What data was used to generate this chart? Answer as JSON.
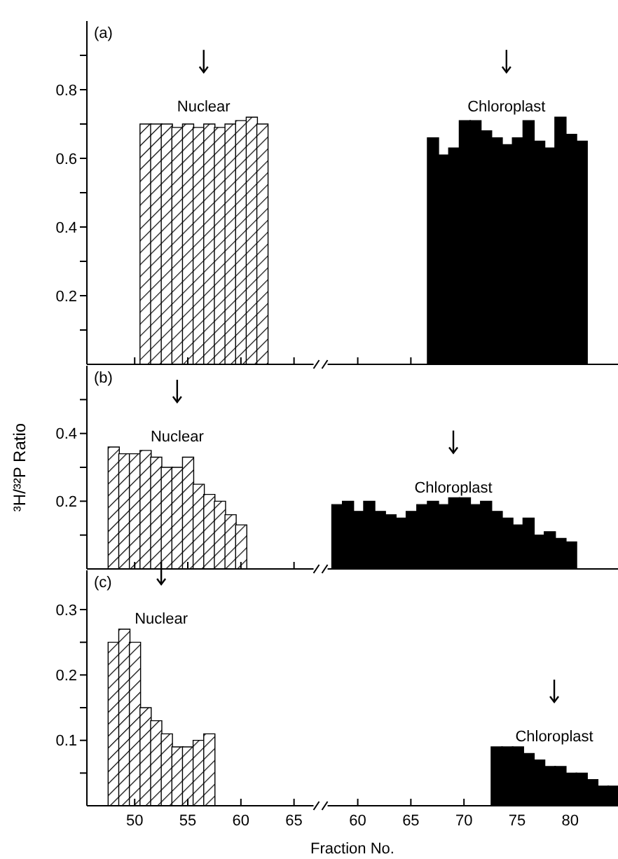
{
  "chart_data": [
    {
      "type": "bar",
      "annotations": [
        "(a)"
      ],
      "tick_labels": "y",
      "categories": [
        null,
        null,
        null,
        null,
        "50",
        null,
        null,
        null,
        null,
        "55",
        null,
        null,
        null,
        null,
        "60",
        null,
        null,
        null,
        null,
        "65",
        null,
        null,
        null,
        null,
        null,
        "60",
        null,
        null,
        null,
        null,
        "65",
        null,
        null,
        null,
        null,
        "70",
        null,
        null,
        null,
        null,
        "75",
        null,
        null,
        null,
        null,
        "80",
        null,
        null,
        null,
        null
      ],
      "series": [
        {
          "name": "Nuclear",
          "color": "#000000",
          "values": [
            null,
            null,
            null,
            null,
            null,
            0.7,
            0.7,
            0.7,
            0.69,
            0.7,
            0.69,
            0.7,
            0.69,
            0.7,
            0.71,
            0.72,
            0.7,
            null,
            null,
            null,
            null,
            null,
            null,
            null,
            null,
            null,
            null,
            null,
            null,
            null,
            null,
            null,
            null,
            null,
            null,
            null,
            null,
            null,
            null,
            null,
            null,
            null,
            null,
            null,
            null,
            null,
            null,
            null,
            null,
            null
          ]
        },
        {
          "name": "Chloroplast",
          "color": "#000000",
          "values": [
            null,
            null,
            null,
            null,
            null,
            null,
            null,
            null,
            null,
            null,
            null,
            null,
            null,
            null,
            null,
            null,
            null,
            null,
            null,
            null,
            null,
            null,
            null,
            null,
            null,
            null,
            null,
            null,
            null,
            null,
            null,
            null,
            0.66,
            0.61,
            0.63,
            0.71,
            0.71,
            0.68,
            0.66,
            0.64,
            0.66,
            0.71,
            0.65,
            0.63,
            0.72,
            0.67,
            0.65,
            null,
            null,
            null
          ]
        }
      ],
      "ylim": [
        0,
        1.0
      ],
      "yticks": [
        {
          "value": 0.1,
          "label": null
        },
        0.2,
        {
          "value": 0.3,
          "label": null
        },
        0.4,
        {
          "value": 0.5,
          "label": null
        },
        0.6,
        {
          "value": 0.7,
          "label": null
        },
        0.8,
        {
          "value": 0.9,
          "label": null
        }
      ]
    },
    {
      "type": "bar",
      "annotations": [
        "(b)"
      ],
      "tick_labels": "y",
      "ylabel": "³H/³²P Ratio",
      "categories": [
        null,
        null,
        null,
        null,
        "50",
        null,
        null,
        null,
        null,
        "55",
        null,
        null,
        null,
        null,
        "60",
        null,
        null,
        null,
        null,
        "65",
        null,
        null,
        null,
        null,
        null,
        "60",
        null,
        null,
        null,
        null,
        "65",
        null,
        null,
        null,
        null,
        "70",
        null,
        null,
        null,
        null,
        "75",
        null,
        null,
        null,
        null,
        "80",
        null,
        null,
        null,
        null
      ],
      "series": [
        {
          "name": "Nuclear",
          "color": "#000000",
          "values": [
            null,
            null,
            0.36,
            0.34,
            0.34,
            0.35,
            0.33,
            0.3,
            0.3,
            0.33,
            0.25,
            0.22,
            0.2,
            0.16,
            0.13,
            null,
            null,
            null,
            null,
            null,
            null,
            null,
            null,
            null,
            null,
            null,
            null,
            null,
            null,
            null,
            null,
            null,
            null,
            null,
            null,
            null,
            null,
            null,
            null,
            null,
            null,
            null,
            null,
            null,
            null,
            null,
            null,
            null,
            null,
            null
          ]
        },
        {
          "name": "Chloroplast",
          "color": "#000000",
          "values": [
            null,
            null,
            null,
            null,
            null,
            null,
            null,
            null,
            null,
            null,
            null,
            null,
            null,
            null,
            null,
            null,
            null,
            null,
            null,
            null,
            null,
            null,
            null,
            0.19,
            0.2,
            0.17,
            0.2,
            0.17,
            0.16,
            0.15,
            0.17,
            0.19,
            0.2,
            0.19,
            0.21,
            0.21,
            0.19,
            0.2,
            0.17,
            0.15,
            0.13,
            0.15,
            0.1,
            0.11,
            0.09,
            0.08,
            null,
            null,
            null,
            null
          ]
        }
      ],
      "ylim": [
        0,
        0.6
      ],
      "yticks": [
        {
          "value": 0.1,
          "label": null
        },
        0.2,
        {
          "value": 0.3,
          "label": null
        },
        0.4,
        {
          "value": 0.5,
          "label": null
        }
      ]
    },
    {
      "type": "bar",
      "annotations": [
        "(c)"
      ],
      "xlabel": "Fraction No.",
      "categories": [
        null,
        null,
        null,
        null,
        "50",
        null,
        null,
        null,
        null,
        "55",
        null,
        null,
        null,
        null,
        "60",
        null,
        null,
        null,
        null,
        "65",
        null,
        null,
        null,
        null,
        null,
        "60",
        null,
        null,
        null,
        null,
        "65",
        null,
        null,
        null,
        null,
        "70",
        null,
        null,
        null,
        null,
        "75",
        null,
        null,
        null,
        null,
        "80",
        null,
        null,
        null,
        null
      ],
      "series": [
        {
          "name": "Nuclear",
          "color": "#000000",
          "values": [
            null,
            null,
            0.25,
            0.27,
            0.25,
            0.15,
            0.13,
            0.11,
            0.09,
            0.09,
            0.1,
            0.11,
            null,
            null,
            null,
            null,
            null,
            null,
            null,
            null,
            null,
            null,
            null,
            null,
            null,
            null,
            null,
            null,
            null,
            null,
            null,
            null,
            null,
            null,
            null,
            null,
            null,
            null,
            null,
            null,
            null,
            null,
            null,
            null,
            null,
            null,
            null,
            null,
            null,
            null
          ]
        },
        {
          "name": "Chloroplast",
          "color": "#000000",
          "values": [
            null,
            null,
            null,
            null,
            null,
            null,
            null,
            null,
            null,
            null,
            null,
            null,
            null,
            null,
            null,
            null,
            null,
            null,
            null,
            null,
            null,
            null,
            null,
            null,
            null,
            null,
            null,
            null,
            null,
            null,
            null,
            null,
            null,
            null,
            null,
            null,
            null,
            null,
            0.09,
            0.09,
            0.09,
            0.08,
            0.07,
            0.06,
            0.06,
            0.05,
            0.05,
            0.04,
            0.03,
            0.03
          ]
        }
      ],
      "ylim": [
        0,
        0.36
      ],
      "yticks": [
        {
          "value": 0.05,
          "label": null
        },
        0.1,
        {
          "value": 0.15,
          "label": null
        },
        0.2,
        {
          "value": 0.25,
          "label": null
        },
        0.3
      ]
    }
  ]
}
